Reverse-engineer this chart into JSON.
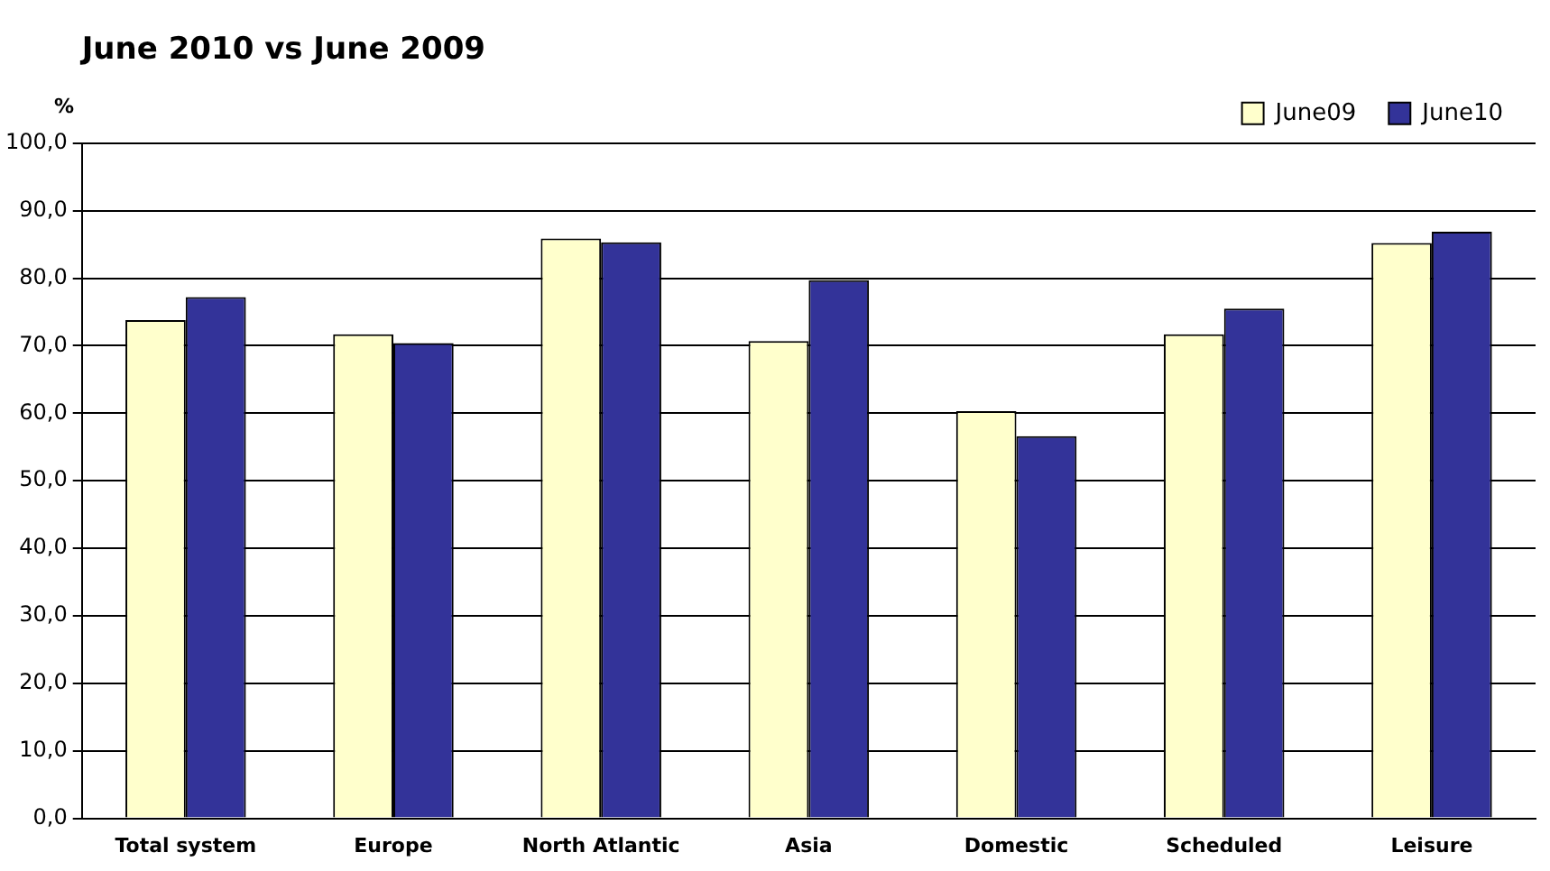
{
  "chart_data": {
    "type": "bar",
    "title": "June 2010 vs June 2009",
    "ylabel": "%",
    "categories": [
      "Total system",
      "Europe",
      "North Atlantic",
      "Asia",
      "Domestic",
      "Scheduled",
      "Leisure"
    ],
    "series": [
      {
        "name": "June09",
        "color": "#ffffcc",
        "values": [
          73.8,
          71.7,
          85.9,
          70.7,
          60.3,
          71.7,
          85.2
        ]
      },
      {
        "name": "June10",
        "color": "#333399",
        "values": [
          77.2,
          70.4,
          85.3,
          79.7,
          56.6,
          75.5,
          86.9
        ]
      }
    ],
    "ylim": [
      0,
      100
    ],
    "yticks": [
      {
        "value": 0,
        "label": "0,0"
      },
      {
        "value": 10,
        "label": "10,0"
      },
      {
        "value": 20,
        "label": "20,0"
      },
      {
        "value": 30,
        "label": "30,0"
      },
      {
        "value": 40,
        "label": "40,0"
      },
      {
        "value": 50,
        "label": "50,0"
      },
      {
        "value": 60,
        "label": "60,0"
      },
      {
        "value": 70,
        "label": "70,0"
      },
      {
        "value": 80,
        "label": "80,0"
      },
      {
        "value": 90,
        "label": "90,0"
      },
      {
        "value": 100,
        "label": "100,0"
      }
    ],
    "grid": "y",
    "legend": "top right"
  }
}
